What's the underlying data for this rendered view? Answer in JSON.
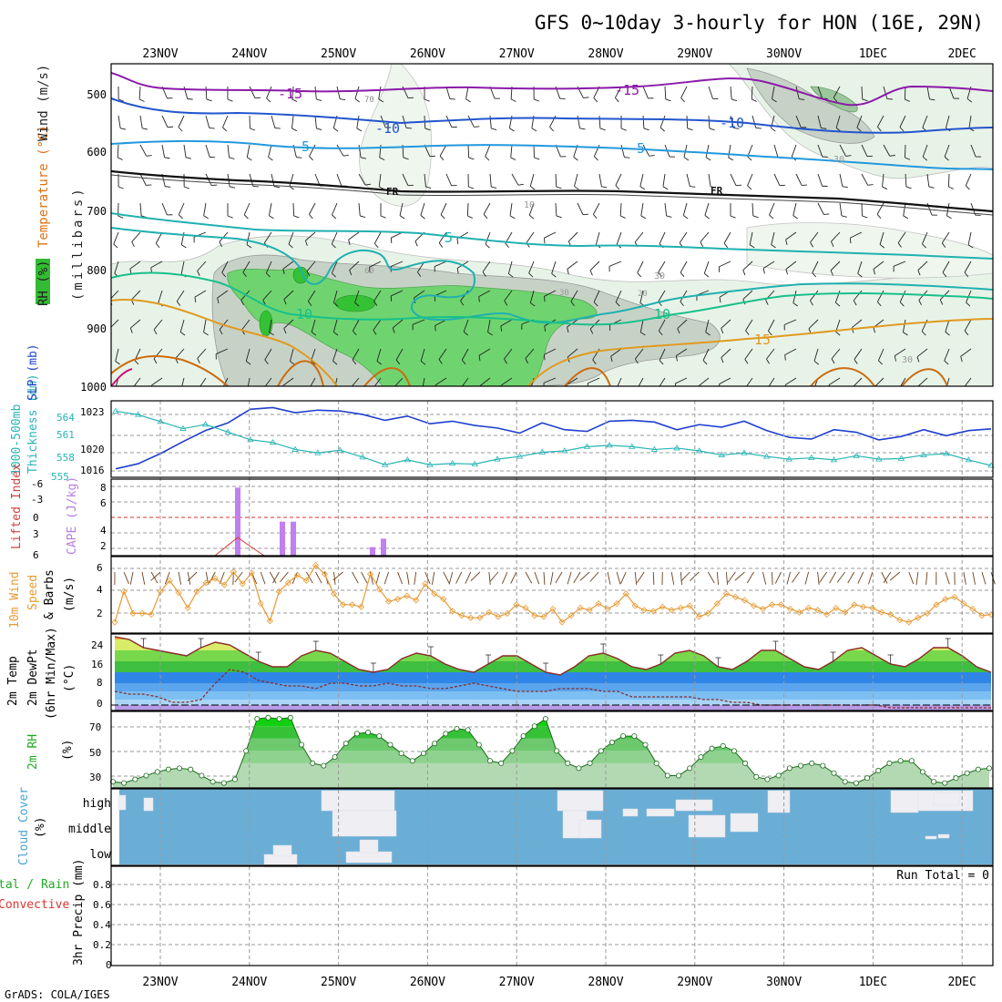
{
  "header": {
    "title": "GFS 0~10day 3-hourly for HON (16E, 29N)"
  },
  "footer": {
    "credit": "GrADS: COLA/IGES"
  },
  "date_labels": [
    "23NOV",
    "24NOV",
    "25NOV",
    "26NOV",
    "27NOV",
    "28NOV",
    "29NOV",
    "30NOV",
    "1DEC",
    "2DEC"
  ],
  "colors": {
    "rh_green": "#5ccf5c",
    "rh_grey": "#c9d3c9",
    "rh_light": "#e6f2e6",
    "t_minus15": "#8a1aa8",
    "t_minus10": "#2255cc",
    "t_minus5": "#2299dd",
    "t_fr": "#111111",
    "t_5": "#20b0b0",
    "t_10": "#18c08a",
    "t_15": "#e09a20",
    "slp": "#1f3fcf",
    "thick": "#27b4b4",
    "cape": "#c27ff0",
    "wind": "#e69a33",
    "cloud": "#6aaed6",
    "cloud_fill": "#f1f1f6"
  },
  "panels": {
    "upper": {
      "ylabel_parts": [
        "RH (%)",
        "Temperature (°C)",
        "Wind (m/s)"
      ],
      "ylabel2": "(millibars)",
      "pressure_ticks": [
        "500",
        "600",
        "700",
        "800",
        "900",
        "1000"
      ],
      "contour_labels": [
        "-15",
        "-15",
        "-10",
        "-10",
        "-5",
        "-5",
        "FR",
        "FR",
        "5",
        "10",
        "10",
        "15",
        "70",
        "10",
        "60",
        "30",
        "30",
        "20",
        "30",
        "30"
      ]
    },
    "slp": {
      "ylabel_a": "1000-500mb",
      "ylabel_b": "Thickness (dm)",
      "ylabel_c": "SLP (mb)",
      "left_ticks": [
        "564",
        "561",
        "558",
        "555"
      ],
      "right_ticks": [
        "1023",
        "1020",
        "1016"
      ]
    },
    "cape": {
      "ylabel_a": "Lifted Index",
      "ylabel_b": "CAPE (J/kg)",
      "li_ticks": [
        "-6",
        "-3",
        "0",
        "3",
        "6"
      ],
      "cape_ticks": [
        "8",
        "6",
        "4",
        "2"
      ]
    },
    "wind": {
      "ylabel_a": "10m Wind",
      "ylabel_b": "Speed",
      "ylabel_c": "& Barbs",
      "ylabel_d": "(m/s)",
      "ticks": [
        "6",
        "4",
        "2"
      ]
    },
    "temp": {
      "ylabel_a": "2m Temp",
      "ylabel_b": "2m DewPt",
      "ylabel_c": "(6hr Min/Max)",
      "ylabel_d": "(°C)",
      "ticks": [
        "24",
        "16",
        "8",
        "0"
      ]
    },
    "rh2m": {
      "ylabel_a": "2m RH",
      "ylabel_b": "(%)",
      "ticks": [
        "70",
        "50",
        "30"
      ]
    },
    "cloud": {
      "ylabel_a": "Cloud Cover",
      "ylabel_b": "(%)",
      "levels": [
        "high",
        "middle",
        "low"
      ]
    },
    "precip": {
      "ylabel_a": "tal / Rain",
      "ylabel_b": "Convective",
      "ylabel_c": "3hr Precip (mm)",
      "ticks": [
        "0.8",
        "0.6",
        "0.4",
        "0.2",
        "0"
      ],
      "run_total": "Run Total = 0"
    }
  },
  "chart_data": [
    {
      "type": "line",
      "title": "1000-500mb Thickness (dm) / SLP (mb)",
      "x": [
        "22NOV12",
        "22NOV18",
        "23NOV00",
        "23NOV06",
        "23NOV12",
        "23NOV18",
        "24NOV00",
        "24NOV06",
        "24NOV12",
        "24NOV18",
        "25NOV00",
        "25NOV06",
        "25NOV12",
        "25NOV18",
        "26NOV00",
        "26NOV06",
        "26NOV12",
        "26NOV18",
        "27NOV00",
        "27NOV06",
        "27NOV12",
        "27NOV18",
        "28NOV00",
        "28NOV06",
        "28NOV12",
        "28NOV18",
        "29NOV00",
        "29NOV06",
        "29NOV12",
        "29NOV18",
        "30NOV00",
        "30NOV06",
        "30NOV12",
        "30NOV18",
        "1DEC00",
        "1DEC06",
        "1DEC12",
        "1DEC18",
        "2DEC00",
        "2DEC06"
      ],
      "series": [
        {
          "name": "SLP (mb)",
          "values": [
            1016.0,
            1016.6,
            1017.8,
            1019.2,
            1020.5,
            1021.4,
            1023.0,
            1023.2,
            1022.6,
            1022.9,
            1022.8,
            1022.4,
            1021.7,
            1022.2,
            1021.3,
            1021.6,
            1021.1,
            1020.8,
            1020.2,
            1021.4,
            1020.6,
            1020.4,
            1021.6,
            1021.7,
            1021.5,
            1020.6,
            1021.2,
            1020.9,
            1021.6,
            1020.5,
            1019.7,
            1019.5,
            1020.6,
            1020.3,
            1019.4,
            1019.8,
            1020.6,
            1019.9,
            1020.5,
            1020.7
          ]
        },
        {
          "name": "1000-500mb Thickness (dm)",
          "values": [
            564.5,
            564.0,
            563.0,
            562.0,
            562.6,
            561.5,
            560.4,
            560.0,
            559.0,
            558.5,
            558.9,
            557.9,
            556.8,
            557.5,
            556.8,
            557.0,
            556.9,
            557.6,
            558.0,
            558.6,
            558.8,
            559.4,
            559.6,
            559.4,
            559.0,
            559.2,
            558.8,
            558.2,
            558.5,
            558.0,
            557.6,
            557.8,
            557.5,
            558.1,
            557.6,
            557.7,
            558.2,
            558.4,
            557.5,
            556.7
          ]
        }
      ],
      "ylim_left": [
        555,
        566
      ],
      "ylim_right": [
        1015,
        1024
      ]
    },
    {
      "type": "bar",
      "title": "CAPE (J/kg)",
      "x": [
        "23NOV21",
        "24NOV12",
        "24NOV15",
        "25NOV09",
        "25NOV12"
      ],
      "values": [
        8,
        4,
        4,
        1,
        2
      ],
      "ylim": [
        0,
        9
      ]
    },
    {
      "type": "line",
      "title": "10m Wind Speed (m/s)",
      "values": [
        1.0,
        3.8,
        1.8,
        1.8,
        1.7,
        3.8,
        4.8,
        3.7,
        2.3,
        3.8,
        4.6,
        5.0,
        4.4,
        5.6,
        4.5,
        5.5,
        2.7,
        1.1,
        3.8,
        4.6,
        5.3,
        4.8,
        6.2,
        5.4,
        3.6,
        2.6,
        2.6,
        2.4,
        5.4,
        4.0,
        2.9,
        3.1,
        3.4,
        3.0,
        4.5,
        3.6,
        3.1,
        2.0,
        1.6,
        1.4,
        1.4,
        1.9,
        1.5,
        1.8,
        2.6,
        2.3,
        1.6,
        1.5,
        2.2,
        1.0,
        1.6,
        2.3,
        2.1,
        2.7,
        2.2,
        2.7,
        3.6,
        2.5,
        2.1,
        2.0,
        2.4,
        2.1,
        2.3,
        2.5,
        1.5,
        1.8,
        2.7,
        3.6,
        3.3,
        3.0,
        2.5,
        2.2,
        2.6,
        2.6,
        2.2,
        1.9,
        2.3,
        2.1,
        1.7,
        2.3,
        1.9,
        2.6,
        2.4,
        2.3,
        1.9,
        1.7,
        1.2,
        1.0,
        1.4,
        1.8,
        2.6,
        3.1,
        3.3,
        2.7,
        2.2,
        1.6,
        1.7
      ],
      "ylim": [
        0,
        7
      ]
    },
    {
      "type": "area",
      "title": "2m Temp / 2m DewPt (°C)",
      "series": [
        {
          "name": "2m Temp",
          "values": [
            25,
            24,
            21,
            20,
            19,
            18,
            21,
            23,
            22,
            19,
            16,
            14,
            14,
            18,
            20,
            19,
            16,
            13,
            12,
            13,
            17,
            19,
            18,
            15,
            13,
            12,
            15,
            18,
            18,
            15,
            12,
            11,
            14,
            18,
            19,
            17,
            14,
            13,
            15,
            19,
            20,
            18,
            14,
            13,
            16,
            20,
            20,
            17,
            14,
            13,
            16,
            20,
            21,
            18,
            15,
            14,
            17,
            21,
            21,
            18,
            14,
            12
          ]
        },
        {
          "name": "2m DewPt",
          "values": [
            5,
            4,
            4,
            3,
            1,
            1,
            2,
            8,
            13,
            12,
            9,
            8,
            7,
            7,
            6,
            8,
            8,
            7,
            7,
            8,
            7,
            7,
            6,
            6,
            7,
            8,
            7,
            6,
            5,
            5,
            5,
            6,
            6,
            6,
            5,
            5,
            3,
            3,
            3,
            3,
            3,
            2,
            2,
            1,
            1,
            0,
            0,
            0,
            0,
            0,
            0,
            0,
            0,
            0,
            -1,
            -1,
            -1,
            -1,
            -1,
            -1,
            -1,
            -1
          ]
        }
      ],
      "ylim": [
        -2,
        26
      ]
    },
    {
      "type": "area",
      "title": "2m RH (%)",
      "values": [
        25,
        24,
        27,
        30,
        33,
        35,
        36,
        35,
        30,
        25,
        24,
        27,
        50,
        76,
        77,
        76,
        77,
        55,
        40,
        38,
        45,
        56,
        64,
        65,
        62,
        55,
        48,
        42,
        48,
        56,
        64,
        68,
        67,
        55,
        42,
        40,
        50,
        62,
        70,
        76,
        50,
        40,
        36,
        40,
        50,
        57,
        62,
        62,
        55,
        40,
        30,
        30,
        36,
        45,
        52,
        54,
        50,
        40,
        29,
        27,
        30,
        36,
        38,
        40,
        38,
        32,
        25,
        24,
        28,
        34,
        40,
        42,
        42,
        33,
        25,
        24,
        28,
        32,
        35,
        36
      ],
      "ylim": [
        20,
        82
      ]
    },
    {
      "type": "table",
      "title": "3hr Precip (mm)",
      "values": [
        0
      ],
      "ylim": [
        0,
        0.9
      ]
    }
  ]
}
